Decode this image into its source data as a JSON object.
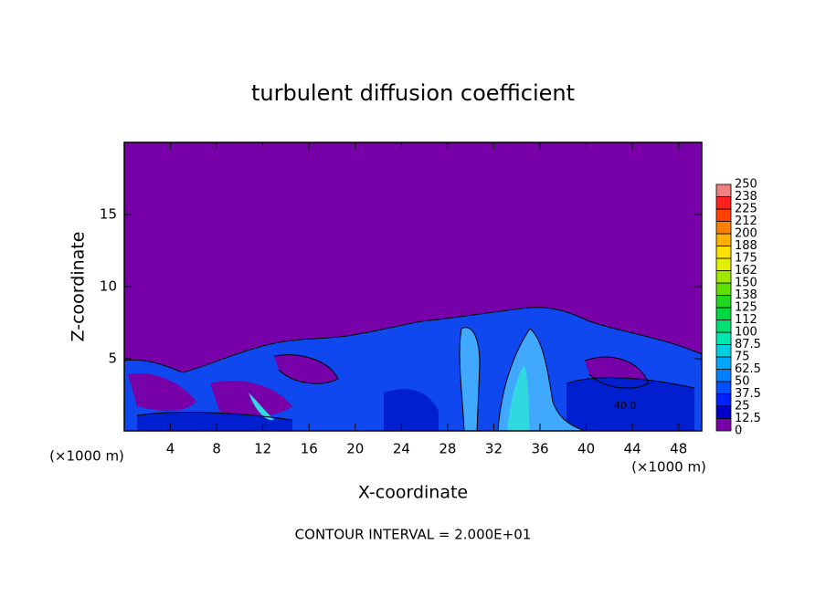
{
  "chart_data": {
    "type": "contour",
    "title": "turbulent diffusion coefficient",
    "x_label": "X-coordinate",
    "y_label": "Z-coordinate",
    "x_unit_label": "(×1000 m)",
    "footer": "CONTOUR INTERVAL = 2.000E+01",
    "annotations": [
      "40.0"
    ],
    "xlim": [
      0,
      50
    ],
    "xticks": [
      4,
      8,
      12,
      16,
      20,
      24,
      28,
      32,
      36,
      40,
      44,
      48
    ],
    "ylim": [
      0,
      20
    ],
    "yticks": [
      5,
      10,
      15
    ],
    "colorbar": {
      "lim": [
        0,
        250
      ],
      "ticks": [
        0,
        12.5,
        25,
        37.5,
        50,
        62.5,
        75,
        87.5,
        100,
        {
          "value": 112.5,
          "label": "112"
        },
        125,
        {
          "value": 137.5,
          "label": "138"
        },
        150,
        {
          "value": 162.5,
          "label": "162"
        },
        175,
        {
          "value": 187.5,
          "label": "188"
        },
        200,
        {
          "value": 212.5,
          "label": "212"
        },
        225,
        {
          "value": 237.5,
          "label": "238"
        },
        250
      ],
      "colors": [
        "#7800a8",
        "#0000c8",
        "#0020ff",
        "#0050ff",
        "#0080ff",
        "#00a8ff",
        "#00d0e0",
        "#00e8b0",
        "#00e070",
        "#00d840",
        "#20d820",
        "#60e000",
        "#a0e800",
        "#e0f000",
        "#ffe000",
        "#ffb000",
        "#ff8000",
        "#ff4000",
        "#ff2020",
        "#f08080"
      ]
    }
  }
}
